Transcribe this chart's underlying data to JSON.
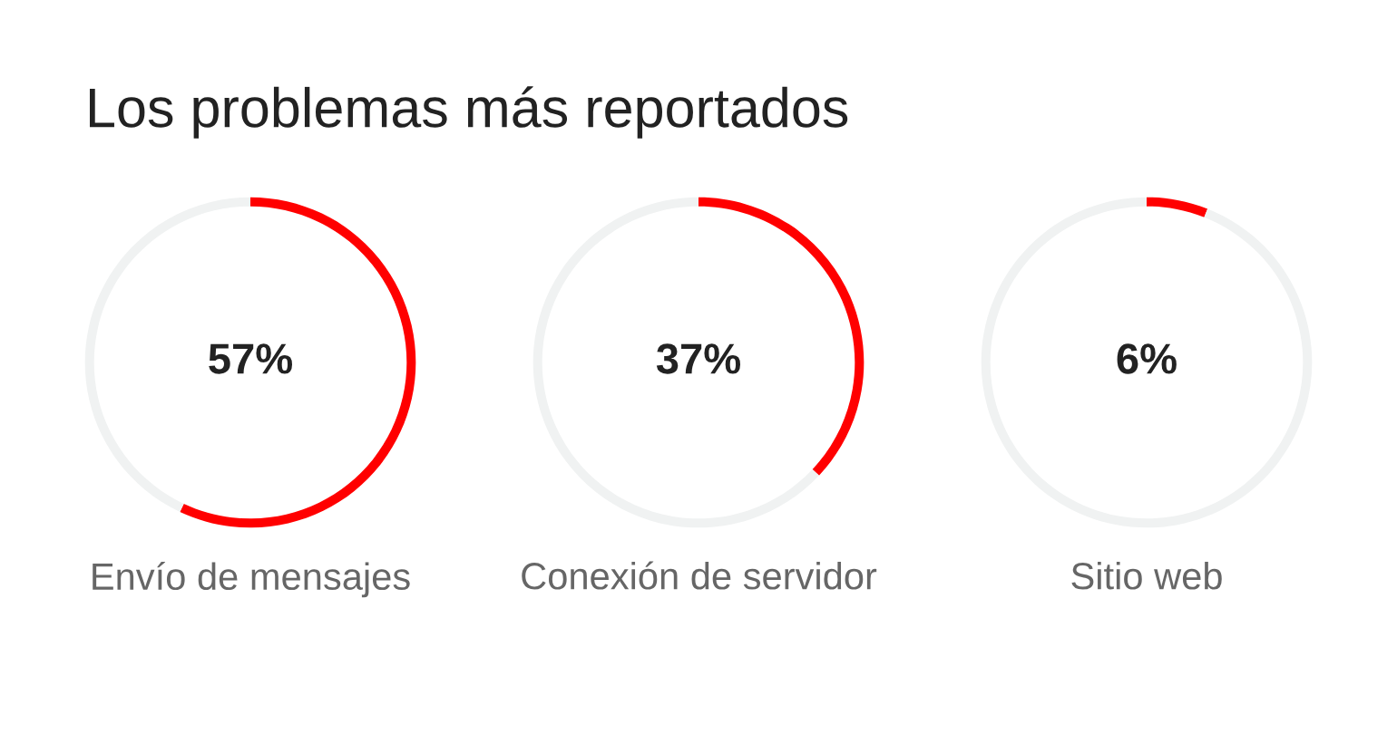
{
  "chart_data": [
    {
      "type": "donut",
      "title": "Los problemas más reportados",
      "xlabel": "Envío de mensajes",
      "categories": [
        null,
        null
      ],
      "values": [
        57,
        43
      ],
      "colors": [
        "#ff0000",
        "#f0f2f2"
      ],
      "value_labels": [
        "57%",
        null
      ]
    },
    {
      "type": "donut",
      "xlabel": "Conexión de servidor",
      "categories": [
        null,
        null
      ],
      "values": [
        37,
        63
      ],
      "colors": [
        "#ff0000",
        "#f0f2f2"
      ],
      "value_labels": [
        "37%",
        null
      ]
    },
    {
      "type": "donut",
      "xlabel": "Sitio web",
      "categories": [
        null,
        null
      ],
      "values": [
        6,
        94
      ],
      "colors": [
        "#ff0000",
        "#f0f2f2"
      ],
      "value_labels": [
        "6%",
        null
      ]
    }
  ]
}
